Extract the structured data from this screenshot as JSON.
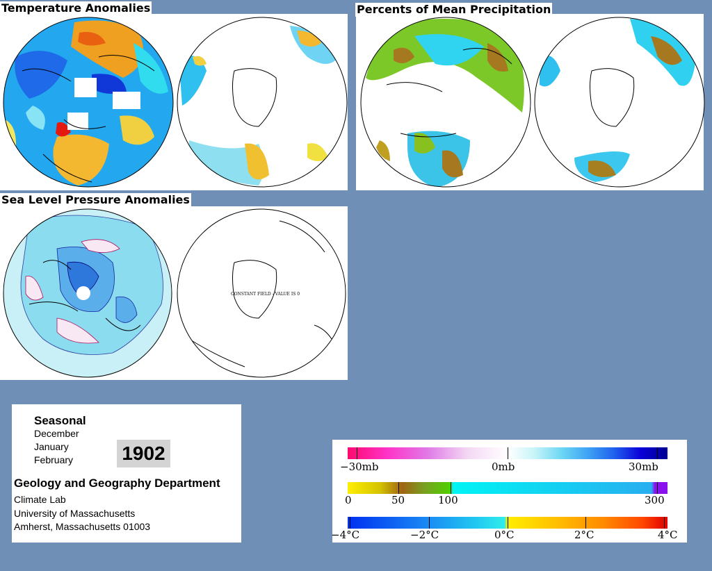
{
  "panels": {
    "temperature": {
      "title": "Temperature Anomalies"
    },
    "precipitation": {
      "title": "Percents of Mean Precipitation"
    },
    "pressure": {
      "title": "Sea Level Pressure Anomalies",
      "south_note": "CONSTANT FIELD - VALUE IS 0"
    }
  },
  "info": {
    "season": "Seasonal",
    "months": [
      "December",
      "January",
      "February"
    ],
    "year": "1902",
    "department": "Geology and Geography Department",
    "lines": [
      "Climate Lab",
      "University of Massachusetts",
      "Amherst, Massachusetts 01003"
    ]
  },
  "legend": {
    "pressure": {
      "labels": [
        "−30mb",
        "0mb",
        "30mb"
      ],
      "colors": [
        "#ff0a6e",
        "#ff33c8",
        "#e07ae6",
        "#f4d8f4",
        "#ffffff",
        "#c8f4f8",
        "#6fd8f4",
        "#3fa4f4",
        "#2060ee",
        "#0a00d8",
        "#000090"
      ]
    },
    "precip": {
      "labels": [
        "0",
        "50",
        "100",
        "300"
      ],
      "colors": [
        "#ffee00",
        "#c8b400",
        "#a06414",
        "#78a020",
        "#50d000",
        "#00f4f4",
        "#28aef0",
        "#8a10ee"
      ]
    },
    "temp": {
      "labels": [
        "−4°C",
        "−2°C",
        "0°C",
        "2°C",
        "4°C"
      ],
      "colors": [
        "#0030f0",
        "#1a8af4",
        "#20c8f0",
        "#30ecec",
        "#ffee00",
        "#ffc000",
        "#ff8a00",
        "#ff4800",
        "#e00000"
      ]
    }
  },
  "colors": {
    "background": "#6f8fb6",
    "panel": "#ffffff"
  }
}
